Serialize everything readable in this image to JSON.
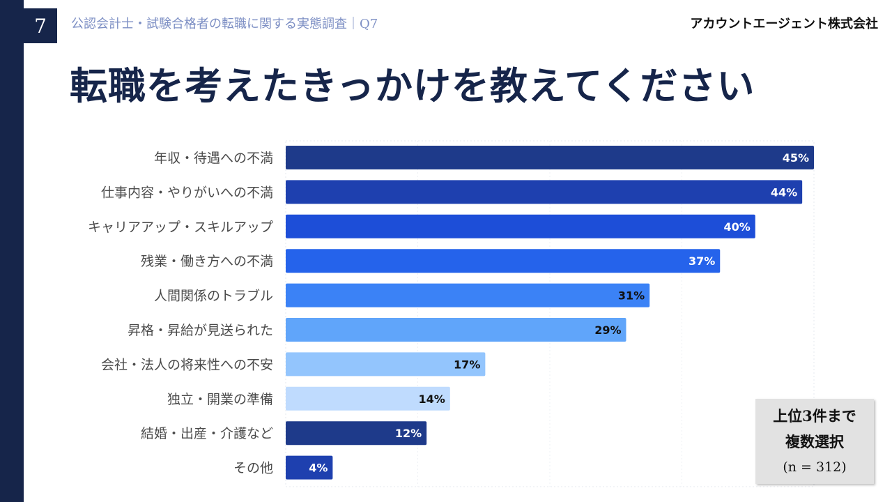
{
  "header": {
    "page_number": "7",
    "subtitle": "公認会計士・試験合格者の転職に関する実態調査｜Q7",
    "company": "アカウントエージェント株式会社"
  },
  "title": "転職を考えたきっかけを教えてください",
  "note": {
    "line1": "上位3件まで",
    "line2": "複数選択",
    "line3": "(n = 312)"
  },
  "colors": {
    "navy": "#16254a",
    "bar_dark": "#1e3a8a",
    "bar_blue": "#1d4ed8",
    "bar_mid": "#2563eb",
    "bar_light": "#3b82f6",
    "bar_lighter": "#60a5fa",
    "bar_pale": "#93c5fd",
    "bar_palest": "#bfdbfe"
  },
  "chart_data": {
    "type": "bar",
    "orientation": "horizontal",
    "categories": [
      "年収・待遇への不満",
      "仕事内容・やりがいへの不満",
      "キャリアアップ・スキルアップ",
      "残業・働き方への不満",
      "人間関係のトラブル",
      "昇格・昇給が見送られた",
      "会社・法人の将来性への不安",
      "独立・開業の準備",
      "結婚・出産・介護など",
      "その他"
    ],
    "values": [
      45,
      44,
      40,
      37,
      31,
      29,
      17,
      14,
      12,
      4
    ],
    "value_labels": [
      "45%",
      "44%",
      "40%",
      "37%",
      "31%",
      "29%",
      "17%",
      "14%",
      "12%",
      "4%"
    ],
    "bar_colors": [
      "#1e3a8a",
      "#1e40af",
      "#1d4ed8",
      "#2563eb",
      "#3b82f6",
      "#60a5fa",
      "#93c5fd",
      "#bfdbfe",
      "#1e3a8a",
      "#1e40af"
    ],
    "label_colors": [
      "#ffffff",
      "#ffffff",
      "#ffffff",
      "#ffffff",
      "#111111",
      "#111111",
      "#111111",
      "#111111",
      "#ffffff",
      "#ffffff"
    ],
    "xlim": [
      0,
      45
    ],
    "unit": "%",
    "grid": true
  }
}
